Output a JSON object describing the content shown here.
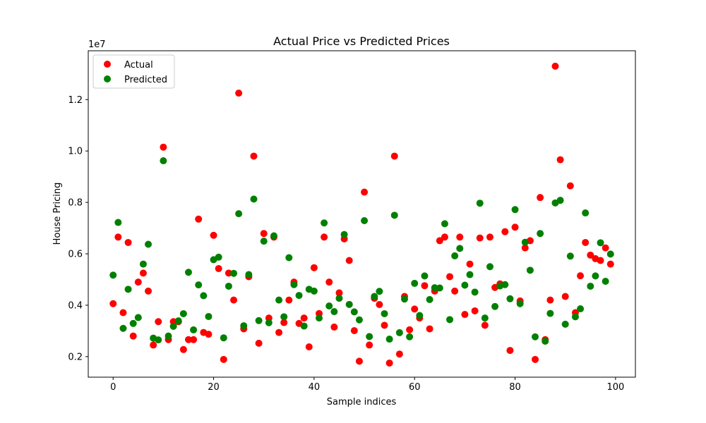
{
  "chart_data": {
    "type": "scatter",
    "title": "Actual Price vs Predicted Prices",
    "xlabel": "Sample indices",
    "ylabel": "House Pricing",
    "y_multiplier_label": "1e7",
    "xlim": [
      -4.95,
      103.95
    ],
    "ylim": [
      1200000,
      13900000
    ],
    "xticks": [
      0,
      20,
      40,
      60,
      80,
      100
    ],
    "yticks": [
      2000000,
      4000000,
      6000000,
      8000000,
      10000000,
      12000000
    ],
    "ytick_labels": [
      "0.2",
      "0.4",
      "0.6",
      "0.8",
      "1.0",
      "1.2"
    ],
    "grid": false,
    "legend_position": "top-left",
    "series": [
      {
        "name": "Actual",
        "color": "#ff0000",
        "x": [
          0,
          1,
          2,
          3,
          4,
          5,
          6,
          7,
          8,
          9,
          10,
          11,
          12,
          13,
          14,
          15,
          16,
          17,
          18,
          19,
          20,
          21,
          22,
          23,
          24,
          25,
          26,
          27,
          28,
          29,
          30,
          31,
          32,
          33,
          34,
          35,
          36,
          37,
          38,
          39,
          40,
          41,
          42,
          43,
          44,
          45,
          46,
          47,
          48,
          49,
          50,
          51,
          52,
          53,
          54,
          55,
          56,
          57,
          58,
          59,
          60,
          61,
          62,
          63,
          64,
          65,
          66,
          67,
          68,
          69,
          70,
          71,
          72,
          73,
          74,
          75,
          76,
          77,
          78,
          79,
          80,
          81,
          82,
          83,
          84,
          85,
          86,
          87,
          88,
          89,
          90,
          91,
          92,
          93,
          94,
          95,
          96,
          97,
          98,
          99
        ],
        "y": [
          4060000,
          6650000,
          3710000,
          6440000,
          2800000,
          4900000,
          5250000,
          4550000,
          2450000,
          3360000,
          10150000,
          2660000,
          3360000,
          3360000,
          2275000,
          2660000,
          2660000,
          7350000,
          2940000,
          2870000,
          6720000,
          5425000,
          1890000,
          5250000,
          4200000,
          12250000,
          3080000,
          5110000,
          9800000,
          2520000,
          6790000,
          3500000,
          6650000,
          2940000,
          3325000,
          4200000,
          4900000,
          3290000,
          3500000,
          2380000,
          5460000,
          3675000,
          6650000,
          4900000,
          3150000,
          4480000,
          6580000,
          5740000,
          3010000,
          1820000,
          8400000,
          2450000,
          4270000,
          4025000,
          3220000,
          1750000,
          9800000,
          2100000,
          4340000,
          3045000,
          3850000,
          3500000,
          4760000,
          3080000,
          4550000,
          6510000,
          6650000,
          5110000,
          4550000,
          6650000,
          3640000,
          5600000,
          3780000,
          6615000,
          3220000,
          6650000,
          4690000,
          4830000,
          6860000,
          2240000,
          7035000,
          4165000,
          6230000,
          6510000,
          1890000,
          8190000,
          2660000,
          4200000,
          13300000,
          9660000,
          4340000,
          8645000,
          3710000,
          5145000,
          6440000,
          5950000,
          5810000,
          5740000,
          6230000,
          5600000
        ]
      },
      {
        "name": "Predicted",
        "color": "#008000",
        "x": [
          0,
          1,
          2,
          3,
          4,
          5,
          6,
          7,
          8,
          9,
          10,
          11,
          12,
          13,
          14,
          15,
          16,
          17,
          18,
          19,
          20,
          21,
          22,
          23,
          24,
          25,
          26,
          27,
          28,
          29,
          30,
          31,
          32,
          33,
          34,
          35,
          36,
          37,
          38,
          39,
          40,
          41,
          42,
          43,
          44,
          45,
          46,
          47,
          48,
          49,
          50,
          51,
          52,
          53,
          54,
          55,
          56,
          57,
          58,
          59,
          60,
          61,
          62,
          63,
          64,
          65,
          66,
          67,
          68,
          69,
          70,
          71,
          72,
          73,
          74,
          75,
          76,
          77,
          78,
          79,
          80,
          81,
          82,
          83,
          84,
          85,
          86,
          87,
          88,
          89,
          90,
          91,
          92,
          93,
          94,
          95,
          96,
          97,
          98,
          99
        ],
        "y": [
          5170000,
          7220000,
          3100000,
          4620000,
          3290000,
          3520000,
          5600000,
          6370000,
          2720000,
          2650000,
          9620000,
          2800000,
          3180000,
          3390000,
          3670000,
          5280000,
          3040000,
          4790000,
          4370000,
          3560000,
          5770000,
          5870000,
          2730000,
          4740000,
          5240000,
          7560000,
          3200000,
          5190000,
          8130000,
          3400000,
          6490000,
          3320000,
          6700000,
          4200000,
          3550000,
          5850000,
          4800000,
          4380000,
          3190000,
          4620000,
          4550000,
          3500000,
          7200000,
          3970000,
          3750000,
          4270000,
          6750000,
          4030000,
          3740000,
          3430000,
          7290000,
          2780000,
          4340000,
          4540000,
          3670000,
          2680000,
          7500000,
          2930000,
          4240000,
          2770000,
          4850000,
          3600000,
          5140000,
          4220000,
          4680000,
          4670000,
          7170000,
          3440000,
          5920000,
          6210000,
          4780000,
          5190000,
          4510000,
          7970000,
          3500000,
          5500000,
          3950000,
          4750000,
          4800000,
          4250000,
          7720000,
          4060000,
          6450000,
          5360000,
          2770000,
          6790000,
          2600000,
          3680000,
          7980000,
          8080000,
          3260000,
          5910000,
          3550000,
          3860000,
          7590000,
          4740000,
          5140000,
          6430000,
          4930000,
          5990000
        ]
      }
    ]
  }
}
